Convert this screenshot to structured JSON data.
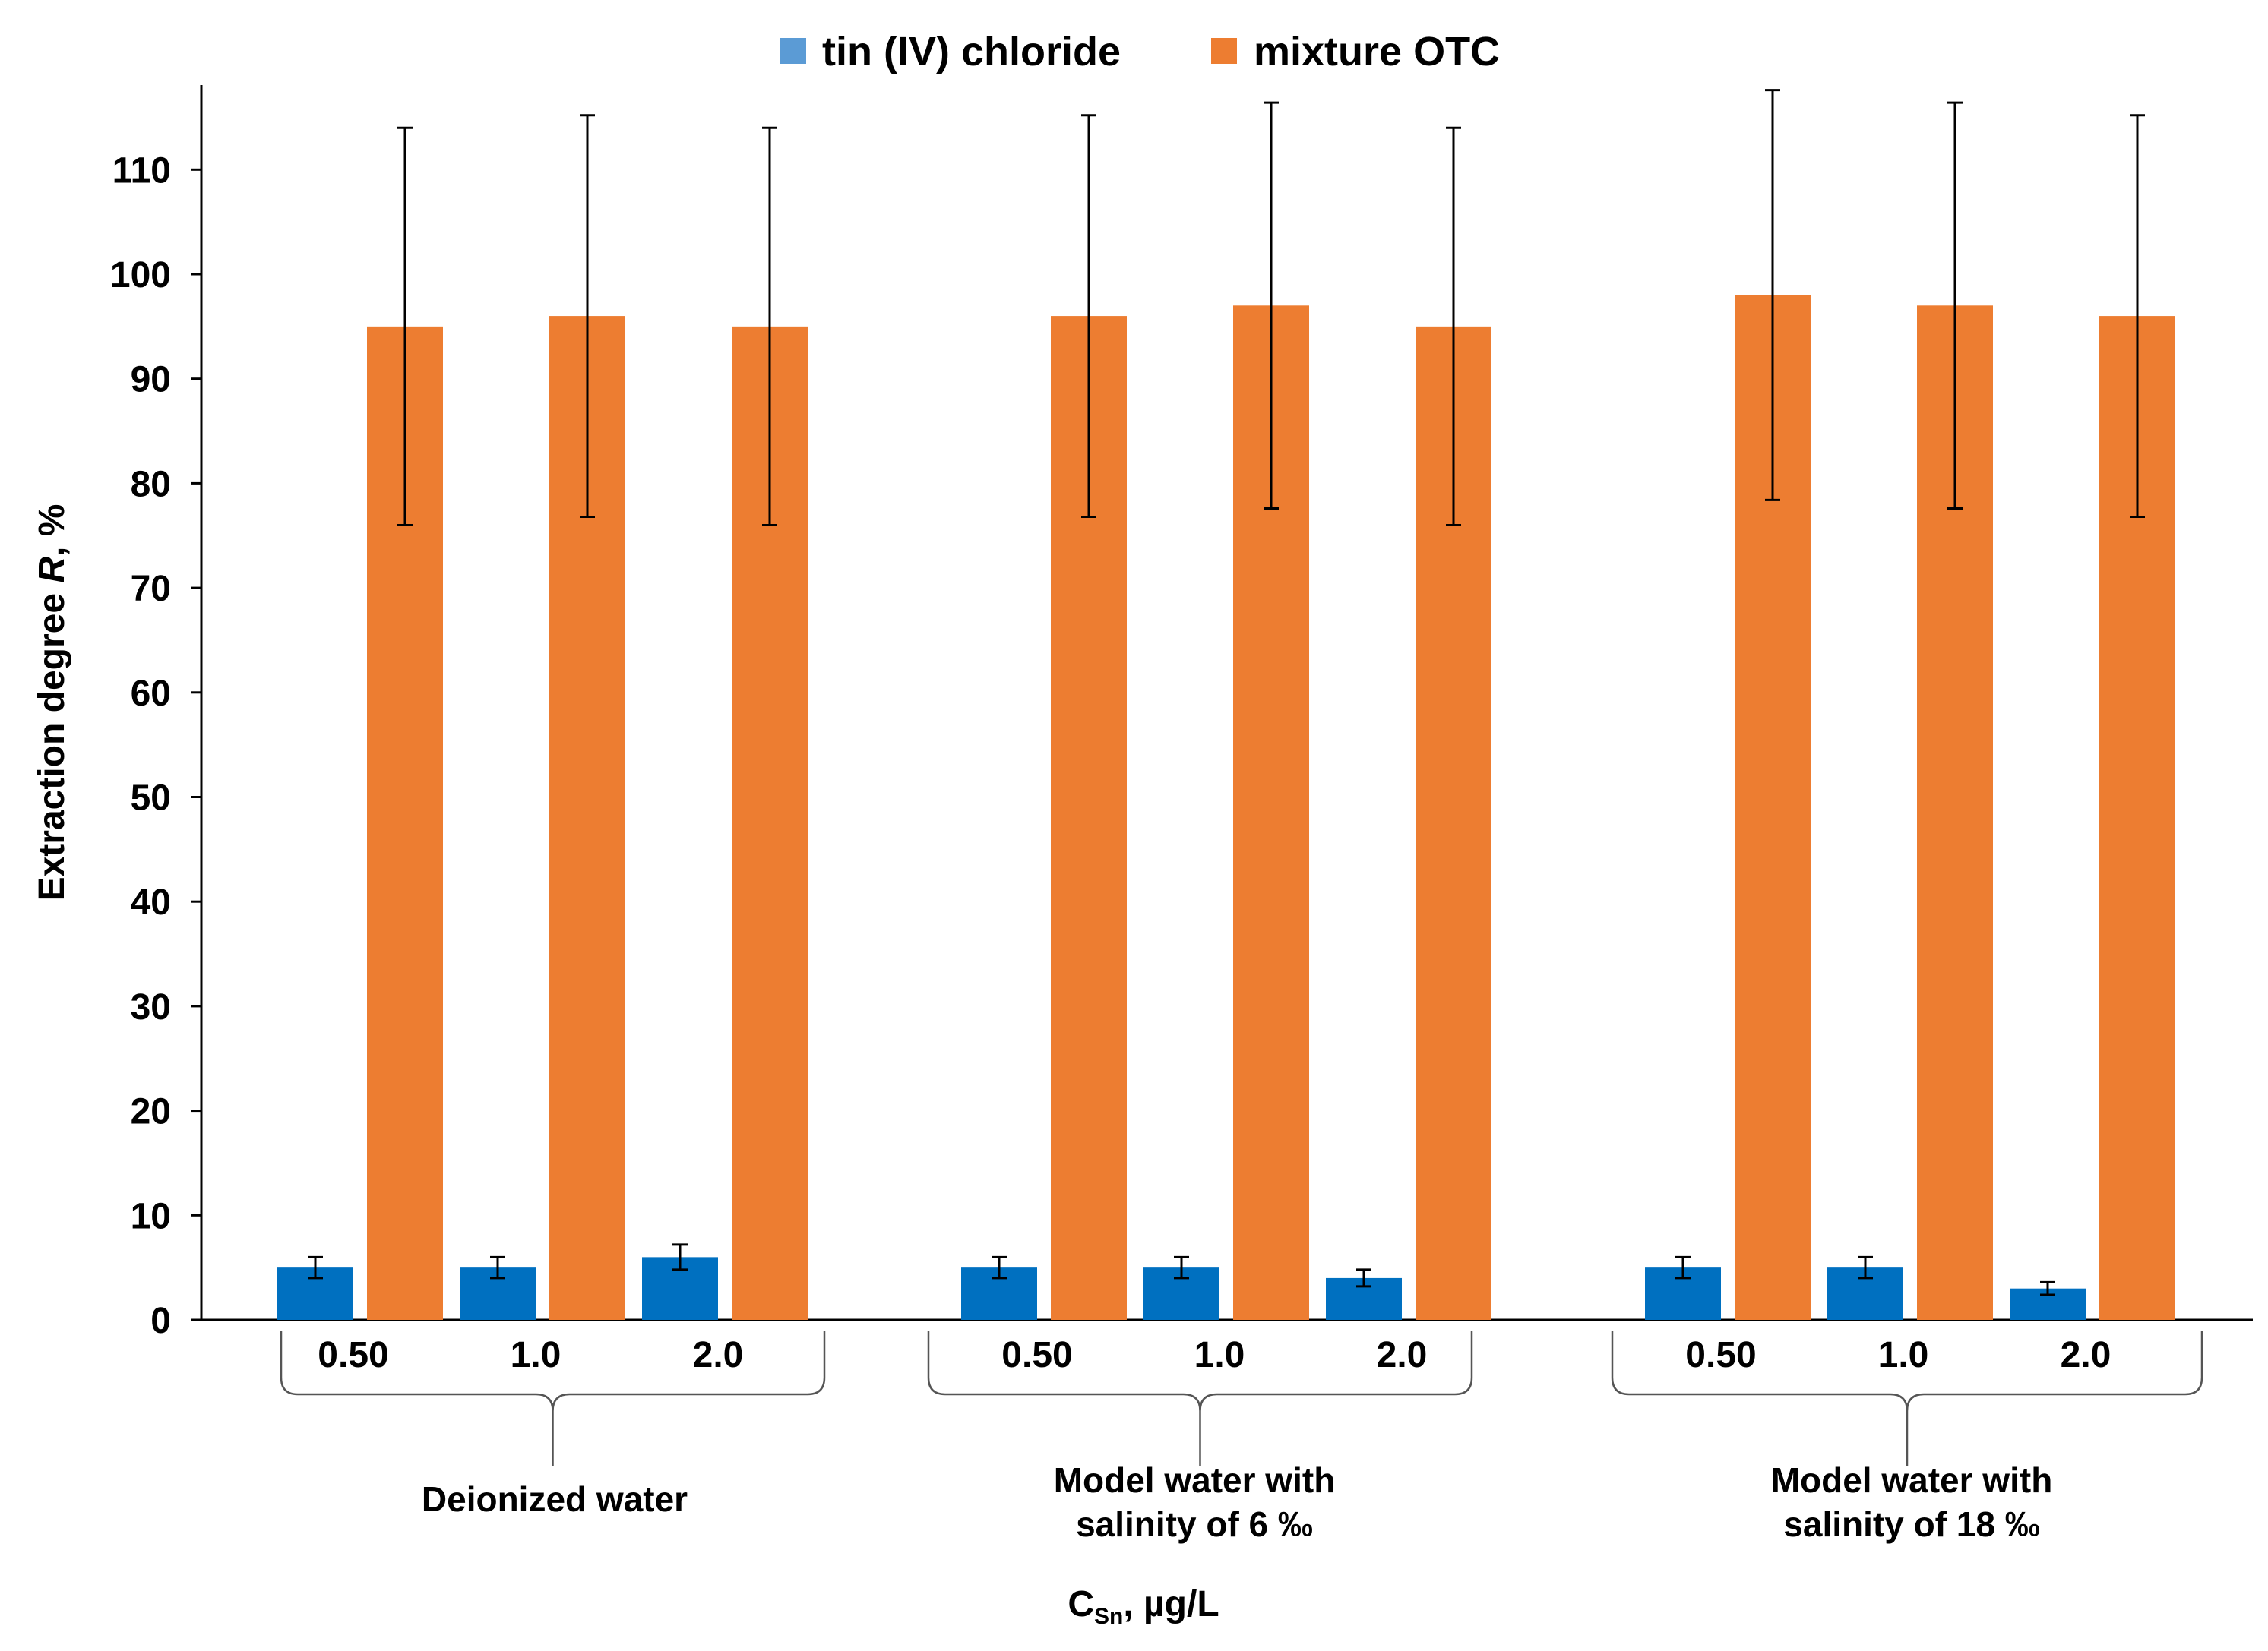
{
  "chart_data": {
    "type": "bar",
    "title": "",
    "xlabel": {
      "main": "C",
      "sub": "Sn",
      "rest": ", µg/L"
    },
    "ylabel": {
      "main": "Extraction degree ",
      "italic": "R",
      "rest": ", %"
    },
    "ylim": [
      0,
      118
    ],
    "yticks": [
      0,
      10,
      20,
      30,
      40,
      50,
      60,
      70,
      80,
      90,
      100,
      110
    ],
    "grid": false,
    "legend_position": "top",
    "groups": [
      {
        "name": "Deionized water",
        "label_lines": [
          "Deionized water"
        ],
        "categories": [
          "0.50",
          "1.0",
          "2.0"
        ]
      },
      {
        "name": "Model water with salinity of 6 ‰",
        "label_lines": [
          "Model water with",
          "salinity of 6 ‰"
        ],
        "categories": [
          "0.50",
          "1.0",
          "2.0"
        ]
      },
      {
        "name": "Model water with salinity of 18 ‰",
        "label_lines": [
          "Model water with",
          "salinity of 18 ‰"
        ],
        "categories": [
          "0.50",
          "1.0",
          "2.0"
        ]
      }
    ],
    "series": [
      {
        "name": "tin (IV) chloride",
        "color": "#0070C0",
        "values": [
          5,
          5,
          6,
          5,
          5,
          4,
          5,
          5,
          3
        ],
        "errors": [
          1,
          1,
          1.2,
          1,
          1,
          0.8,
          1,
          1,
          0.6
        ]
      },
      {
        "name": "mixture OTC",
        "color": "#ED7D31",
        "values": [
          95,
          96,
          95,
          96,
          97,
          95,
          98,
          97,
          96
        ],
        "errors": [
          19,
          19.2,
          19,
          19.2,
          19.4,
          19,
          19.6,
          19.4,
          19.2
        ]
      }
    ],
    "legend": [
      {
        "name": "tin (IV) chloride",
        "color": "#5B9BD5"
      },
      {
        "name": "mixture OTC",
        "color": "#ED7D31"
      }
    ]
  }
}
